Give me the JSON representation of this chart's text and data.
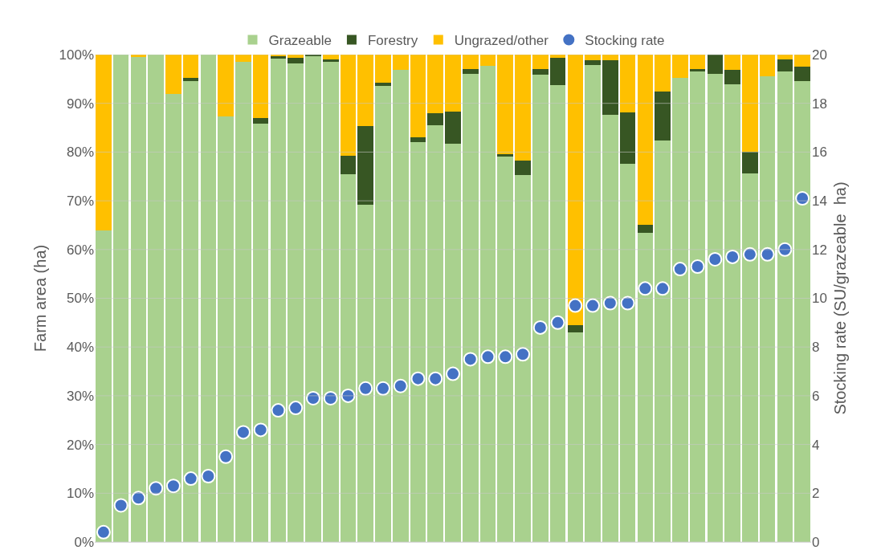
{
  "chart_data": {
    "type": "bar",
    "stacked": true,
    "ylabel": "Farm area (ha)",
    "y2label": "Stocking rate (SU/grazeable  ha)",
    "categories": [
      null,
      null,
      null,
      null,
      null,
      null,
      null,
      null,
      null,
      null,
      null,
      null,
      null,
      null,
      null,
      null,
      null,
      null,
      null,
      null,
      null,
      null,
      null,
      null,
      null,
      null,
      null,
      null,
      null,
      null,
      null,
      null,
      null,
      null,
      null,
      null,
      null,
      null,
      null,
      null,
      null
    ],
    "series": [
      {
        "name": "Grazeable",
        "color": "#a9d18e",
        "values": [
          64,
          100,
          99.5,
          100,
          92,
          94.5,
          100,
          87.3,
          98.5,
          85.8,
          99.2,
          98.2,
          99.6,
          98.5,
          75.5,
          69.2,
          93.5,
          96.9,
          82,
          85.5,
          81.7,
          96,
          97.7,
          79,
          75.3,
          95.8,
          93.8,
          43,
          97.8,
          87.6,
          77.6,
          63.5,
          82.3,
          95.3,
          96.6,
          96.1,
          93.9,
          75.6,
          95.5,
          96.5,
          94.5
        ]
      },
      {
        "name": "Forestry",
        "color": "#375623",
        "values": [
          0,
          0,
          0,
          0,
          0,
          0.7,
          0,
          0,
          0,
          1.2,
          0.5,
          1.2,
          0.4,
          0.5,
          3.8,
          16.2,
          0.8,
          0,
          1.1,
          2.4,
          6.6,
          1,
          0,
          0.5,
          3,
          1.2,
          5.5,
          1.5,
          1.1,
          11.3,
          10.5,
          1.5,
          10.2,
          0,
          0.5,
          3.9,
          2.9,
          4.4,
          0,
          2.5,
          3.1
        ]
      },
      {
        "name": "Ungrazed/other",
        "color": "#ffc000",
        "values": [
          36,
          0,
          0.5,
          0,
          8,
          4.8,
          0,
          12.7,
          1.5,
          13,
          0.3,
          0.6,
          0,
          1,
          20.7,
          14.6,
          5.7,
          3.1,
          16.9,
          12.1,
          11.7,
          3,
          2.3,
          20.5,
          21.7,
          3,
          0.7,
          55.5,
          1.1,
          1.1,
          11.9,
          35,
          7.5,
          4.7,
          2.9,
          0,
          3.2,
          20,
          4.5,
          1,
          2.4
        ]
      },
      {
        "name": "Stocking rate",
        "type": "scatter",
        "axis": "y2",
        "marker": "circle",
        "color": "#4472c4",
        "values": [
          0.4,
          1.5,
          1.8,
          2.2,
          2.3,
          2.6,
          2.7,
          3.5,
          4.5,
          4.6,
          5.4,
          5.5,
          5.9,
          5.9,
          6.0,
          6.3,
          6.3,
          6.4,
          6.7,
          6.7,
          6.9,
          7.5,
          7.6,
          7.6,
          7.7,
          8.8,
          9.0,
          9.7,
          9.7,
          9.8,
          9.8,
          10.4,
          10.4,
          11.2,
          11.3,
          11.6,
          11.7,
          11.8,
          11.8,
          12.0,
          14.1
        ]
      }
    ],
    "ylim": [
      0,
      100
    ],
    "yticks": [
      {
        "value": 0,
        "label": "0%"
      },
      {
        "value": 10,
        "label": "10%"
      },
      {
        "value": 20,
        "label": "20%"
      },
      {
        "value": 30,
        "label": "30%"
      },
      {
        "value": 40,
        "label": "40%"
      },
      {
        "value": 50,
        "label": "50%"
      },
      {
        "value": 60,
        "label": "60%"
      },
      {
        "value": 70,
        "label": "70%"
      },
      {
        "value": 80,
        "label": "80%"
      },
      {
        "value": 90,
        "label": "90%"
      },
      {
        "value": 100,
        "label": "100%"
      }
    ],
    "y2lim": [
      0,
      20
    ],
    "y2ticks": [
      0,
      2,
      4,
      6,
      8,
      10,
      12,
      14,
      16,
      18,
      20
    ],
    "grid": "y",
    "legend": "top",
    "tick_labels": "y"
  }
}
